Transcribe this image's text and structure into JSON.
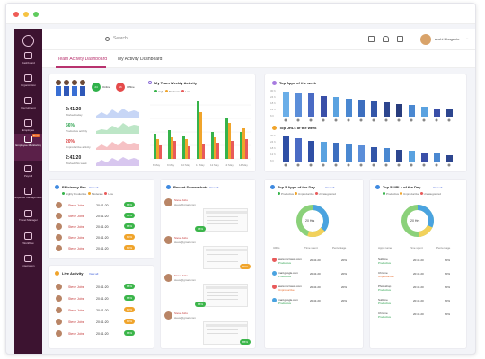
{
  "window": {
    "dots": [
      "#ef5b55",
      "#f6c342",
      "#5fcb5d"
    ]
  },
  "sidebar": {
    "items": [
      {
        "label": "Dashboard"
      },
      {
        "label": "Organization"
      },
      {
        "label": "Recruitment"
      },
      {
        "label": "Employee"
      },
      {
        "label": "Employee Monitoring",
        "badge": "New"
      },
      {
        "label": "Payroll"
      },
      {
        "label": "Expense Management"
      },
      {
        "label": "Travel Manager"
      },
      {
        "label": "Workflow"
      },
      {
        "label": "Integration"
      }
    ]
  },
  "topbar": {
    "search_placeholder": "Search",
    "user": "Arohi Bhaganio"
  },
  "tabs": [
    {
      "label": "Team Activity Dashboard"
    },
    {
      "label": "My Activity Dashboard"
    }
  ],
  "status": {
    "online": "Online",
    "online_count": "24",
    "offline": "Offline",
    "offline_count": "16"
  },
  "stats": [
    {
      "value": "2:41:20",
      "label": "Worked today"
    },
    {
      "value": "56%",
      "label": "Productive activity"
    },
    {
      "value": "20%",
      "label": "Unproductive activity"
    },
    {
      "value": "2:41:20",
      "label": "Worked this week"
    }
  ],
  "weekly": {
    "title": "My Team Weekly Activity",
    "legend": [
      "High",
      "Moderate",
      "Low"
    ],
    "days": [
      "8 May",
      "9 May",
      "10 May",
      "11 May",
      "12 May",
      "13 May",
      "14 May"
    ]
  },
  "top_apps": {
    "title": "Top Apps of the week",
    "axis": [
      "30 h",
      "24 h",
      "18 h",
      "12 h",
      "6 h",
      "0 h"
    ]
  },
  "top_urls": {
    "title": "Top URLs of the week",
    "axis": [
      "30 h",
      "24 h",
      "18 h",
      "12 h",
      "6 h",
      "0 h"
    ]
  },
  "efficiency": {
    "title": "Efficiency Pro",
    "view": "View all",
    "legend": [
      "Highly Productive",
      "Moderate",
      "Low"
    ],
    "rows": [
      {
        "name": "Steve Jobs",
        "time": "20:41:20",
        "pct": "85%",
        "color": "#3bb54a"
      },
      {
        "name": "Steve Jobs",
        "time": "20:41:20",
        "pct": "85%",
        "color": "#3bb54a"
      },
      {
        "name": "Steve Jobs",
        "time": "20:41:20",
        "pct": "85%",
        "color": "#3bb54a"
      },
      {
        "name": "Steve Jobs",
        "time": "20:41:20",
        "pct": "80%",
        "color": "#f0a42b"
      },
      {
        "name": "Steve Jobs",
        "time": "20:41:20",
        "pct": "80%",
        "color": "#f0a42b"
      }
    ]
  },
  "live": {
    "title": "Live Activity",
    "view": "View all",
    "rows": [
      {
        "name": "Steve Jobs",
        "time": "20:41:20",
        "pct": "85%",
        "color": "#3bb54a"
      },
      {
        "name": "Steve Jobs",
        "time": "20:41:20",
        "pct": "85%",
        "color": "#3bb54a"
      },
      {
        "name": "Steve Jobs",
        "time": "20:41:20",
        "pct": "80%",
        "color": "#f0a42b"
      },
      {
        "name": "Steve Jobs",
        "time": "20:41:20",
        "pct": "80%",
        "color": "#f0a42b"
      },
      {
        "name": "Steve Jobs",
        "time": "20:41:20",
        "pct": "85%",
        "color": "#3bb54a"
      }
    ]
  },
  "screenshots": {
    "title": "Recent Screenshots",
    "view": "View all",
    "user_name": "Steve Jobs",
    "user_email": "steve@gmail.com",
    "items": [
      {
        "pct": "65%",
        "color": "#3bb54a"
      },
      {
        "pct": "80%",
        "color": "#f0a42b"
      },
      {
        "pct": "85%",
        "color": "#3bb54a"
      },
      {
        "pct": "85%",
        "color": "#3bb54a"
      }
    ]
  },
  "top_urls_day": {
    "title": "Top 5 Apps of the Day",
    "view": "View all",
    "legend": [
      "Productive",
      "Unproductive",
      "Uncategorized"
    ],
    "center": "20 Hrs",
    "headers": [
      "URLs",
      "Time spent",
      "Percentage"
    ],
    "rows": [
      {
        "name": "www.microsoft.com",
        "sub": "Productive",
        "time": "20:41:20",
        "pct": "20%"
      },
      {
        "name": "mail.google.com",
        "sub": "Productive",
        "time": "20:41:20",
        "pct": "20%"
      },
      {
        "name": "www.microsoft.com",
        "sub": "Unproductive",
        "time": "20:41:20",
        "pct": "20%"
      },
      {
        "name": "mail.google.com",
        "sub": "Productive",
        "time": "20:41:20",
        "pct": "20%"
      }
    ]
  },
  "top_apps_day": {
    "title": "Top 5 URLs of the Day",
    "view": "View all",
    "legend": [
      "Productive",
      "Unproductive",
      "Uncategorized"
    ],
    "center": "20 Hrs",
    "headers": [
      "Apps name",
      "Time spent",
      "Percentage"
    ],
    "rows": [
      {
        "name": "Sublime",
        "sub": "Productive",
        "time": "20:41:20",
        "pct": "20%"
      },
      {
        "name": "Chrome",
        "sub": "Unproductive",
        "time": "20:41:20",
        "pct": "20%"
      },
      {
        "name": "Photoshop",
        "sub": "Productive",
        "time": "20:41:20",
        "pct": "20%"
      },
      {
        "name": "Sublime",
        "sub": "Productive",
        "time": "20:41:20",
        "pct": "20%"
      },
      {
        "name": "Chrome",
        "sub": "Productive",
        "time": "20:41:20",
        "pct": "20%"
      }
    ]
  }
}
